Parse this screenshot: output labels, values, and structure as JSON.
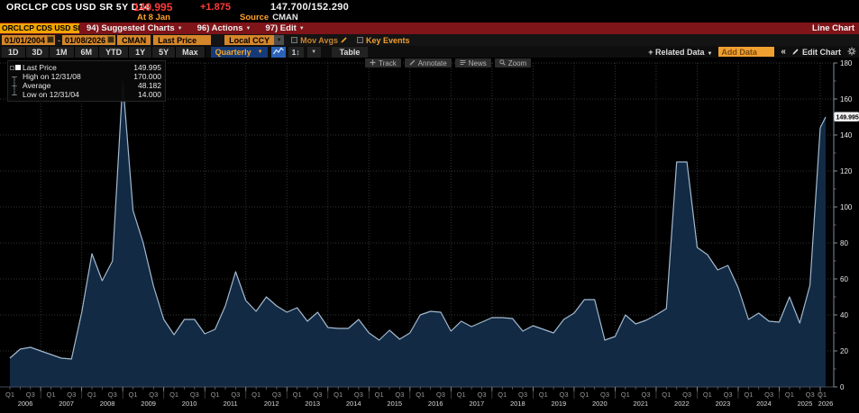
{
  "header": {
    "ticker": "ORCLCP CDS USD SR 5Y D14",
    "last": "149.995",
    "change": "+1.875",
    "bid_ask": "147.700/152.290",
    "as_of": "At 8 Jan",
    "source_label": "Source",
    "source_value": "CMAN"
  },
  "menubar": {
    "security": "ORCLCP CDS USD SR",
    "items": [
      {
        "name": "suggested-charts-menu",
        "label": "94) Suggested Charts"
      },
      {
        "name": "actions-menu",
        "label": "96) Actions"
      },
      {
        "name": "edit-menu",
        "label": "97) Edit"
      }
    ],
    "right": "Line Chart"
  },
  "toolbar": {
    "date_from": "01/01/2004",
    "dash": "-",
    "date_to": "01/08/2026",
    "source_btn": "CMAN",
    "field_btn": "Last Price",
    "ccy_btn": "Local CCY",
    "mov_avgs_label": "Mov Avgs",
    "key_events_label": "Key Events"
  },
  "periodbar": {
    "ranges": [
      "1D",
      "3D",
      "1M",
      "6M",
      "YTD",
      "1Y",
      "5Y",
      "Max"
    ],
    "frequency": "Quarterly",
    "axis_btn_label": "1↕",
    "table_label": "Table",
    "related_label": "+ Related Data",
    "add_data_placeholder": "Add Data",
    "collapse_label": "«",
    "edit_chart_label": "Edit Chart"
  },
  "chart_toolbar": {
    "buttons": [
      {
        "name": "track",
        "label": "Track"
      },
      {
        "name": "annotate",
        "label": "Annotate"
      },
      {
        "name": "news",
        "label": "News"
      },
      {
        "name": "zoom",
        "label": "Zoom"
      }
    ]
  },
  "legend": {
    "rows": [
      {
        "marker": "series-square",
        "label": "Last Price",
        "value": "149.995"
      },
      {
        "marker": "high-tick",
        "label": "High on 12/31/08",
        "value": "170.000"
      },
      {
        "marker": "average-tick",
        "label": "Average",
        "value": "48.182"
      },
      {
        "marker": "low-tick",
        "label": "Low on 12/31/04",
        "value": "14.000"
      }
    ]
  },
  "chart_data": {
    "type": "area",
    "title": "ORCLCP CDS USD SR 5Y D14 - Last Price",
    "frequency": "Quarterly",
    "ylim": [
      0,
      180
    ],
    "y_tick_step": 20,
    "y_ticks": [
      0,
      20,
      40,
      60,
      80,
      100,
      120,
      140,
      160,
      180
    ],
    "grid": true,
    "legend_position": "top-left",
    "x_years": [
      2006,
      2007,
      2008,
      2009,
      2010,
      2011,
      2012,
      2013,
      2014,
      2015,
      2016,
      2017,
      2018,
      2019,
      2020,
      2021,
      2022,
      2023,
      2024,
      2025,
      2026
    ],
    "quarter_tick_labels": [
      "Q1",
      "Q3"
    ],
    "high": {
      "date": "12/31/08",
      "value": 170.0
    },
    "low": {
      "date": "12/31/04",
      "value": 14.0
    },
    "average": 48.182,
    "last": {
      "date": "01/08/2026",
      "value": 149.995
    },
    "quarters": [
      "2006 Q1",
      "2006 Q2",
      "2006 Q3",
      "2006 Q4",
      "2007 Q1",
      "2007 Q2",
      "2007 Q3",
      "2007 Q4",
      "2008 Q1",
      "2008 Q2",
      "2008 Q3",
      "2008 Q4",
      "2009 Q1",
      "2009 Q2",
      "2009 Q3",
      "2009 Q4",
      "2010 Q1",
      "2010 Q2",
      "2010 Q3",
      "2010 Q4",
      "2011 Q1",
      "2011 Q2",
      "2011 Q3",
      "2011 Q4",
      "2012 Q1",
      "2012 Q2",
      "2012 Q3",
      "2012 Q4",
      "2013 Q1",
      "2013 Q2",
      "2013 Q3",
      "2013 Q4",
      "2014 Q1",
      "2014 Q2",
      "2014 Q3",
      "2014 Q4",
      "2015 Q1",
      "2015 Q2",
      "2015 Q3",
      "2015 Q4",
      "2016 Q1",
      "2016 Q2",
      "2016 Q3",
      "2016 Q4",
      "2017 Q1",
      "2017 Q2",
      "2017 Q3",
      "2017 Q4",
      "2018 Q1",
      "2018 Q2",
      "2018 Q3",
      "2018 Q4",
      "2019 Q1",
      "2019 Q2",
      "2019 Q3",
      "2019 Q4",
      "2020 Q1",
      "2020 Q2",
      "2020 Q3",
      "2020 Q4",
      "2021 Q1",
      "2021 Q2",
      "2021 Q3",
      "2021 Q4",
      "2022 Q1",
      "2022 Q2",
      "2022 Q3",
      "2022 Q4",
      "2023 Q1",
      "2023 Q2",
      "2023 Q3",
      "2023 Q4",
      "2024 Q1",
      "2024 Q2",
      "2024 Q3",
      "2024 Q4",
      "2025 Q1",
      "2025 Q2",
      "2025 Q3",
      "2025 Q4",
      "01/08/2026"
    ],
    "values": [
      16,
      21,
      22,
      20,
      18,
      16,
      15.5,
      41.5,
      74,
      59,
      70,
      170,
      98,
      80,
      56,
      37.5,
      29,
      37.5,
      37.5,
      29.5,
      32,
      45,
      64,
      48,
      42,
      50,
      45,
      41.5,
      44,
      36.5,
      41.5,
      33,
      32.5,
      32.5,
      37.5,
      30,
      26,
      31.5,
      26.5,
      30,
      40,
      42,
      41.5,
      31,
      36.5,
      33.5,
      36,
      38.5,
      38.5,
      38,
      31,
      34,
      32,
      30,
      37.5,
      41,
      48.5,
      48.5,
      26,
      28,
      40,
      35,
      37,
      40,
      43.5,
      125,
      125,
      77.5,
      73.5,
      65,
      67.5,
      55,
      37.5,
      41,
      36.5,
      36,
      50,
      35.5,
      56.5,
      144,
      149.995
    ],
    "last_price_tag": "149.995"
  },
  "colors": {
    "background": "#000000",
    "menubar_red": "#7f1419",
    "field_orange": "#d4862a",
    "bright_orange": "#f0a030",
    "amber": "#ffa028",
    "price_red": "#ff3b3b",
    "area_fill": "#122a44",
    "line": "#a3b9ce",
    "grid": "#343434",
    "axis_line": "#7f8b99",
    "axis_text": "#e6e6e6",
    "q_label": "#9a9a9a",
    "year_label": "#d9d9d9",
    "tag_bg": "#f0f0f0",
    "freq_btn_bg": "#163a77",
    "chart_btn_bg": "#2b62b8"
  }
}
